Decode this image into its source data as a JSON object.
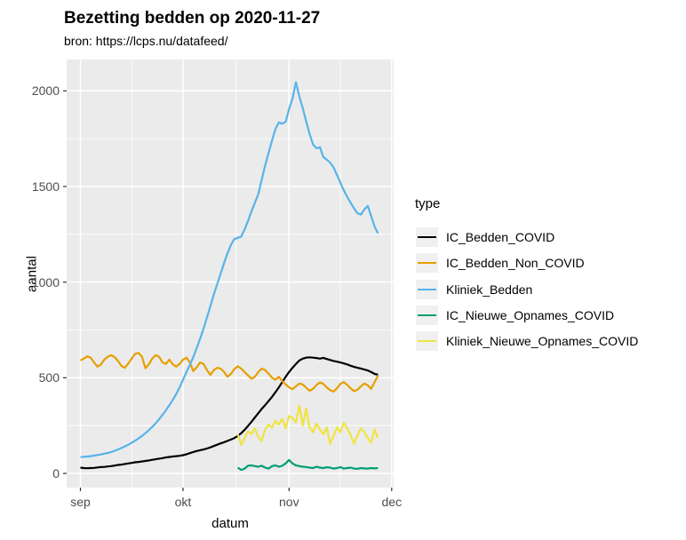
{
  "title": "Bezetting bedden op 2020-11-27",
  "subtitle": "bron: https://lcps.nu/datafeed/",
  "colors": {
    "panel_bg": "#EBEBEB",
    "grid": "#FFFFFF",
    "tick_mark": "#333333",
    "tick_label": "#4D4D4D",
    "legend_key_bg": "#F0F0F0"
  },
  "chart_data": {
    "type": "line",
    "title": "Bezetting bedden op 2020-11-27",
    "subtitle": "bron: https://lcps.nu/datafeed/",
    "xlabel": "datum",
    "ylabel": "aantal",
    "legend_title": "type",
    "legend_position": "right",
    "grid": "on",
    "x_unit": "day (daily values, day 0 = sep, last day = 2020-11-27)",
    "x_tick_labels": [
      "sep",
      "okt",
      "nov",
      "dec"
    ],
    "x_tick_days": [
      0,
      30,
      61,
      91
    ],
    "x_minor_days": [
      15,
      45.5,
      76
    ],
    "y_ticks": [
      0,
      500,
      1000,
      1500,
      2000
    ],
    "y_minor": [
      250,
      750,
      1250,
      1750
    ],
    "ylim": [
      -75,
      2170
    ],
    "series": [
      {
        "name": "IC_Bedden_COVID",
        "color": "#000000",
        "start_day": 0,
        "values": [
          30,
          28,
          27,
          28,
          29,
          31,
          33,
          34,
          36,
          38,
          41,
          44,
          46,
          49,
          52,
          55,
          58,
          60,
          62,
          65,
          68,
          71,
          74,
          77,
          80,
          83,
          86,
          88,
          90,
          92,
          95,
          100,
          106,
          112,
          117,
          121,
          125,
          130,
          136,
          143,
          150,
          157,
          163,
          170,
          177,
          185,
          196,
          210,
          228,
          248,
          270,
          292,
          315,
          337,
          357,
          378,
          400,
          424,
          450,
          477,
          505,
          530,
          552,
          572,
          590,
          600,
          605,
          607,
          605,
          603,
          600,
          604,
          598,
          593,
          588,
          584,
          580,
          575,
          570,
          563,
          557,
          552,
          548,
          543,
          538,
          530,
          520,
          516
        ]
      },
      {
        "name": "IC_Bedden_Non_COVID",
        "color": "#E69F00",
        "start_day": 0,
        "values": [
          590,
          600,
          612,
          605,
          580,
          558,
          570,
          595,
          610,
          618,
          608,
          588,
          562,
          552,
          575,
          600,
          625,
          630,
          610,
          550,
          570,
          600,
          618,
          610,
          580,
          572,
          595,
          570,
          558,
          572,
          595,
          605,
          580,
          535,
          555,
          580,
          572,
          540,
          515,
          540,
          552,
          548,
          530,
          505,
          520,
          545,
          560,
          548,
          530,
          512,
          495,
          505,
          530,
          548,
          540,
          522,
          500,
          490,
          505,
          482,
          465,
          450,
          440,
          455,
          470,
          465,
          448,
          432,
          442,
          462,
          475,
          468,
          450,
          435,
          428,
          445,
          468,
          478,
          462,
          445,
          430,
          438,
          455,
          470,
          460,
          442,
          478,
          512
        ]
      },
      {
        "name": "Kliniek_Bedden",
        "color": "#56B4E9",
        "start_day": 0,
        "values": [
          85,
          87,
          88,
          90,
          93,
          96,
          99,
          103,
          107,
          112,
          118,
          125,
          133,
          141,
          150,
          160,
          171,
          183,
          196,
          210,
          226,
          243,
          262,
          283,
          306,
          330,
          356,
          384,
          414,
          450,
          490,
          530,
          568,
          608,
          655,
          705,
          758,
          815,
          875,
          935,
          990,
          1045,
          1100,
          1150,
          1195,
          1225,
          1232,
          1238,
          1275,
          1320,
          1370,
          1415,
          1460,
          1535,
          1610,
          1675,
          1740,
          1800,
          1835,
          1828,
          1838,
          1905,
          1960,
          2045,
          1970,
          1910,
          1840,
          1775,
          1720,
          1700,
          1705,
          1655,
          1640,
          1625,
          1600,
          1560,
          1520,
          1480,
          1445,
          1415,
          1385,
          1360,
          1353,
          1380,
          1398,
          1345,
          1290,
          1255
        ]
      },
      {
        "name": "IC_Nieuwe_Opnames_COVID",
        "color": "#009E73",
        "start_day": 46,
        "values": [
          30,
          18,
          25,
          40,
          42,
          38,
          35,
          40,
          30,
          25,
          38,
          42,
          35,
          40,
          52,
          70,
          52,
          42,
          38,
          35,
          33,
          30,
          28,
          35,
          30,
          28,
          32,
          30,
          25,
          28,
          33,
          25,
          28,
          30,
          25,
          24,
          28,
          26,
          25,
          28,
          26,
          28
        ]
      },
      {
        "name": "Kliniek_Nieuwe_Opnames_COVID",
        "color": "#F0E442",
        "start_day": 46,
        "values": [
          205,
          150,
          185,
          220,
          205,
          235,
          190,
          170,
          230,
          255,
          240,
          275,
          255,
          285,
          235,
          300,
          290,
          265,
          355,
          250,
          340,
          240,
          215,
          260,
          230,
          205,
          240,
          155,
          195,
          240,
          215,
          265,
          235,
          200,
          155,
          200,
          235,
          215,
          185,
          160,
          230,
          185
        ]
      }
    ]
  }
}
